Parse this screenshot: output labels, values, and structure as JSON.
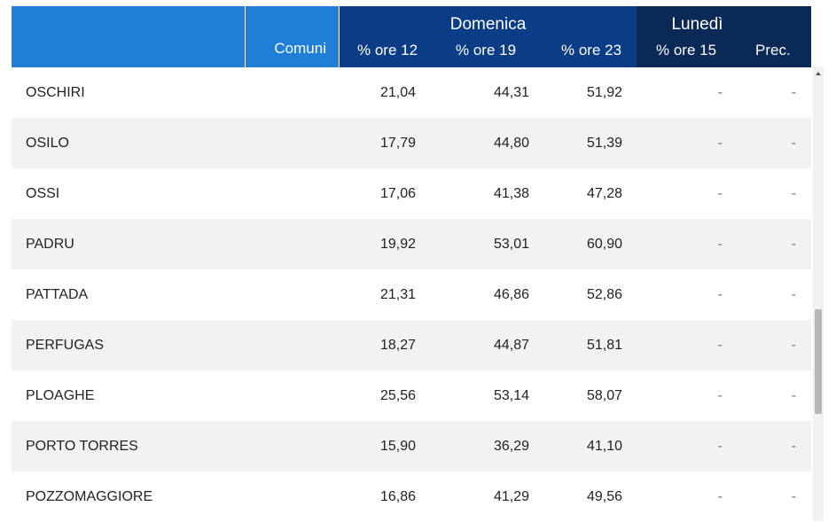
{
  "header": {
    "comuni_label": "Comuni",
    "domenica_label": "Domenica",
    "lunedi_label": "Lunedì",
    "col_ore12": "% ore 12",
    "col_ore19": "% ore 19",
    "col_ore23": "% ore 23",
    "col_ore15": "% ore 15",
    "col_prec": "Prec."
  },
  "rows": [
    {
      "comune": "OSCHIRI",
      "ore12": "21,04",
      "ore19": "44,31",
      "ore23": "51,92",
      "ore15": "-",
      "prec": "-"
    },
    {
      "comune": "OSILO",
      "ore12": "17,79",
      "ore19": "44,80",
      "ore23": "51,39",
      "ore15": "-",
      "prec": "-"
    },
    {
      "comune": "OSSI",
      "ore12": "17,06",
      "ore19": "41,38",
      "ore23": "47,28",
      "ore15": "-",
      "prec": "-"
    },
    {
      "comune": "PADRU",
      "ore12": "19,92",
      "ore19": "53,01",
      "ore23": "60,90",
      "ore15": "-",
      "prec": "-"
    },
    {
      "comune": "PATTADA",
      "ore12": "21,31",
      "ore19": "46,86",
      "ore23": "52,86",
      "ore15": "-",
      "prec": "-"
    },
    {
      "comune": "PERFUGAS",
      "ore12": "18,27",
      "ore19": "44,87",
      "ore23": "51,81",
      "ore15": "-",
      "prec": "-"
    },
    {
      "comune": "PLOAGHE",
      "ore12": "25,56",
      "ore19": "53,14",
      "ore23": "58,07",
      "ore15": "-",
      "prec": "-"
    },
    {
      "comune": "PORTO TORRES",
      "ore12": "15,90",
      "ore19": "36,29",
      "ore23": "41,10",
      "ore15": "-",
      "prec": "-"
    },
    {
      "comune": "POZZOMAGGIORE",
      "ore12": "16,86",
      "ore19": "41,29",
      "ore23": "49,56",
      "ore15": "-",
      "prec": "-"
    }
  ],
  "colors": {
    "header_light_blue": "#1f7fd6",
    "header_domenica": "#0b3d86",
    "header_lunedi": "#0a2956",
    "row_alt": "#f2f2f2"
  }
}
